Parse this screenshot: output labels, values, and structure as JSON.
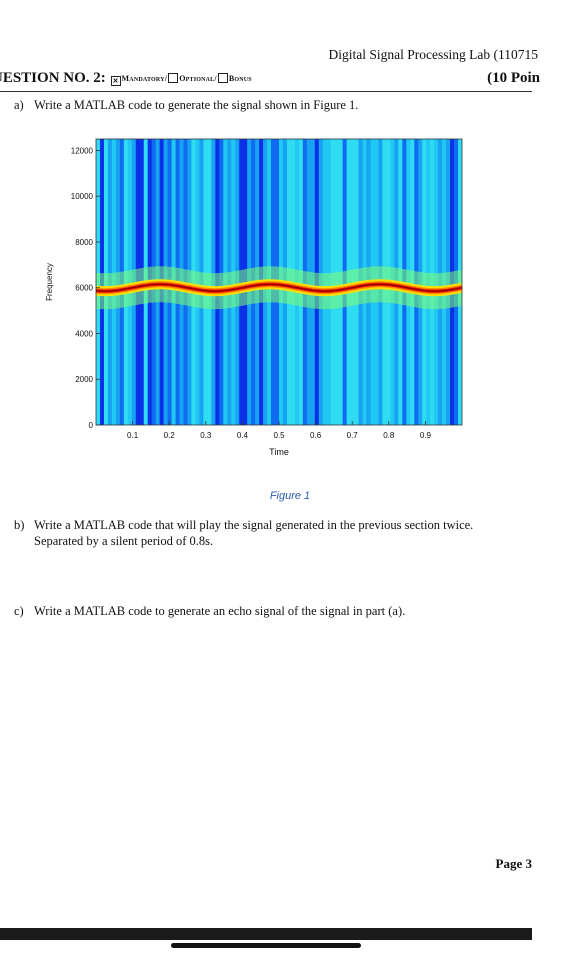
{
  "header": {
    "lab_title": "Digital Signal Processing Lab (110715",
    "question_label": "UESTION NO. 2:",
    "option_mandatory": "Mandatory/",
    "option_optional": "Optional/",
    "option_bonus": "Bonus",
    "points": "(10 Poin"
  },
  "parts": {
    "a": {
      "label": "a)",
      "text": "Write a MATLAB code to generate the signal shown in Figure 1."
    },
    "b": {
      "label": "b)",
      "text": "Write a MATLAB code that will play the signal generated in the previous section twice.",
      "text2": "Separated by a silent period of 0.8s."
    },
    "c": {
      "label": "c)",
      "text": "Write a MATLAB code to generate an echo signal of the signal in part (a)."
    }
  },
  "figure": {
    "caption": "Figure 1"
  },
  "chart_data": {
    "type": "heatmap",
    "xlabel": "Time",
    "ylabel": "Frequency",
    "xticks": [
      0.1,
      0.2,
      0.3,
      0.4,
      0.5,
      0.6,
      0.7,
      0.8,
      0.9
    ],
    "yticks": [
      0,
      2000,
      4000,
      6000,
      8000,
      10000,
      12000
    ],
    "xlim": [
      0,
      1
    ],
    "ylim": [
      0,
      12500
    ],
    "colormap": "jet",
    "ridge": {
      "description": "sinusoidal frequency modulation",
      "center_hz": 6000,
      "deviation_hz": 150,
      "period_s": 0.3
    }
  },
  "footer": {
    "page": "Page 3"
  }
}
